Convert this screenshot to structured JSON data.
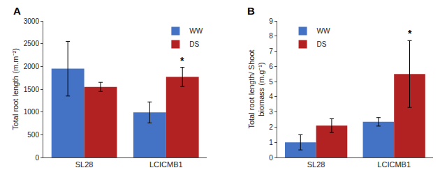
{
  "chart_data": [
    {
      "type": "bar",
      "title": "A",
      "categories": [
        "SL28",
        "LCICMB1"
      ],
      "series": [
        {
          "name": "WW",
          "color": "#4472C4",
          "values": [
            1950,
            990
          ],
          "errors": [
            600,
            230
          ]
        },
        {
          "name": "DS",
          "color": "#B22222",
          "values": [
            1550,
            1770
          ],
          "errors": [
            100,
            210
          ]
        }
      ],
      "ylabel": "Total root length (m.m⁻²)",
      "ylim": [
        0,
        3000
      ],
      "yticks": [
        0,
        500,
        1000,
        1500,
        2000,
        2500,
        3000
      ],
      "annotations": [
        {
          "text": "*",
          "category": "LCICMB1",
          "series": "DS"
        }
      ],
      "legend": "upper right",
      "grid": false
    },
    {
      "type": "bar",
      "title": "B",
      "categories": [
        "SL28",
        "LCICMB1"
      ],
      "series": [
        {
          "name": "WW",
          "color": "#4472C4",
          "values": [
            1.0,
            2.35
          ],
          "errors": [
            0.5,
            0.28
          ]
        },
        {
          "name": "DS",
          "color": "#B22222",
          "values": [
            2.1,
            5.5
          ],
          "errors": [
            0.45,
            2.2
          ]
        }
      ],
      "ylabel": "Total root length/ Shoot\nbiomass (m.g⁻¹)",
      "ylim": [
        0,
        9
      ],
      "yticks": [
        0,
        1,
        2,
        3,
        4,
        5,
        6,
        7,
        8,
        9
      ],
      "annotations": [
        {
          "text": "*",
          "category": "LCICMB1",
          "series": "DS"
        }
      ],
      "legend": "upper left",
      "grid": false
    }
  ]
}
